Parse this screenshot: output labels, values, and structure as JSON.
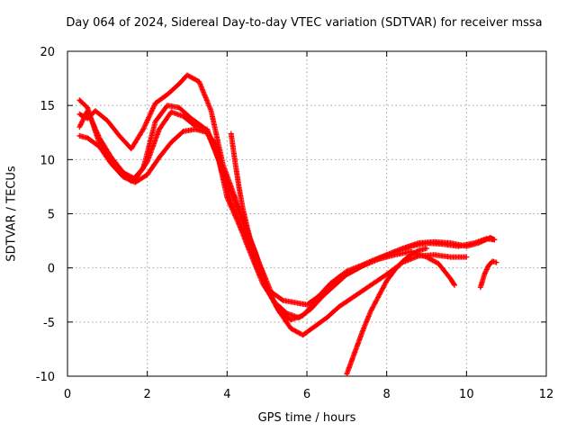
{
  "chart_data": {
    "type": "scatter",
    "title": "Day 064 of 2024, Sidereal Day-to-day VTEC variation (SDTVAR) for receiver mssa",
    "xlabel": "GPS time / hours",
    "ylabel": "SDTVAR / TECUs",
    "xlim": [
      0,
      12
    ],
    "ylim": [
      -10,
      20
    ],
    "xticks": [
      "0",
      "2",
      "4",
      "6",
      "8",
      "10",
      "12"
    ],
    "yticks": [
      "-10",
      "-5",
      "0",
      "5",
      "10",
      "15",
      "20"
    ],
    "grid": true,
    "marker": "+",
    "color": "#ff0000",
    "series": [
      {
        "name": "track-1",
        "x": [
          0.3,
          0.5,
          0.7,
          1.0,
          1.3,
          1.6,
          1.9,
          2.2,
          2.5,
          2.8,
          3.0,
          3.3,
          3.6,
          3.9,
          4.2,
          4.5,
          4.8,
          5.1,
          5.4,
          5.7,
          6.0,
          6.3,
          6.6,
          7.0,
          7.4,
          7.8,
          8.2,
          8.6,
          9.0,
          9.4,
          9.8,
          10.2,
          10.5,
          10.7
        ],
        "y": [
          14.2,
          13.8,
          14.5,
          13.6,
          12.2,
          11.0,
          12.8,
          15.2,
          16.0,
          17.0,
          17.8,
          17.2,
          14.5,
          9.5,
          6.5,
          3.5,
          0.5,
          -2.2,
          -3.0,
          -3.2,
          -3.4,
          -2.6,
          -1.4,
          -0.3,
          0.3,
          0.9,
          1.5,
          2.0,
          2.3,
          2.2,
          2.0,
          2.3,
          2.7,
          2.6
        ]
      },
      {
        "name": "track-2",
        "x": [
          0.3,
          0.5,
          0.8,
          1.1,
          1.4,
          1.7,
          2.0,
          2.3,
          2.6,
          2.9,
          3.2,
          3.5,
          3.8,
          4.1,
          4.4,
          4.7,
          5.0,
          5.3,
          5.6,
          5.9,
          6.2,
          6.5,
          6.8,
          7.2,
          7.6,
          8.0,
          8.4,
          8.8,
          9.2,
          9.6,
          10.0,
          10.3,
          10.6,
          10.7
        ],
        "y": [
          13.0,
          14.5,
          12.0,
          10.2,
          8.8,
          8.2,
          9.8,
          12.8,
          14.4,
          14.0,
          13.1,
          12.8,
          9.8,
          6.0,
          3.5,
          0.5,
          -2.0,
          -4.0,
          -4.8,
          -4.4,
          -3.2,
          -2.0,
          -1.0,
          -0.2,
          0.6,
          1.2,
          1.8,
          2.3,
          2.4,
          2.3,
          2.0,
          2.3,
          2.8,
          2.6
        ]
      },
      {
        "name": "track-3",
        "x": [
          0.3,
          0.5,
          0.8,
          1.1,
          1.4,
          1.7,
          2.0,
          2.3,
          2.6,
          2.9,
          3.2,
          3.5,
          3.8,
          4.1,
          4.4,
          4.7,
          5.0,
          5.3,
          5.6,
          5.9,
          6.2,
          6.5,
          6.8,
          7.2,
          7.6,
          8.0,
          8.4,
          8.8,
          9.2,
          9.6,
          10.0
        ],
        "y": [
          12.2,
          12.0,
          11.2,
          9.6,
          8.4,
          7.9,
          8.6,
          10.2,
          11.6,
          12.6,
          12.8,
          12.5,
          10.0,
          7.0,
          4.2,
          1.5,
          -1.8,
          -4.0,
          -5.6,
          -6.2,
          -5.4,
          -4.6,
          -3.6,
          -2.6,
          -1.6,
          -0.6,
          0.5,
          1.1,
          1.2,
          1.0,
          1.0
        ]
      },
      {
        "name": "track-4",
        "x": [
          0.3,
          0.5,
          0.8,
          1.1,
          1.4,
          1.6,
          1.9,
          2.2,
          2.5,
          2.8,
          3.1,
          3.4,
          3.7,
          4.0,
          4.3,
          4.6,
          4.9,
          5.2,
          5.5,
          5.8,
          6.1,
          6.4,
          6.7,
          7.0,
          7.4,
          7.8,
          8.2,
          8.6,
          9.0,
          9.3,
          9.6,
          9.7
        ],
        "y": [
          15.5,
          14.8,
          11.5,
          9.8,
          8.6,
          8.0,
          9.2,
          13.5,
          15.0,
          14.8,
          13.8,
          13.0,
          11.5,
          6.5,
          4.0,
          1.2,
          -1.5,
          -3.2,
          -4.2,
          -4.6,
          -3.8,
          -2.6,
          -1.6,
          -0.6,
          0.2,
          0.8,
          1.2,
          1.5,
          1.0,
          0.4,
          -1.0,
          -1.6
        ]
      },
      {
        "name": "track-5",
        "x": [
          4.1,
          4.2,
          4.3,
          4.4,
          4.5,
          4.6,
          4.7
        ],
        "y": [
          12.4,
          9.8,
          7.4,
          5.4,
          3.8,
          2.4,
          1.2
        ]
      },
      {
        "name": "track-6",
        "x": [
          7.0,
          7.2,
          7.4,
          7.6,
          7.8,
          8.0,
          8.2,
          8.4,
          8.6,
          8.8,
          9.0
        ],
        "y": [
          -9.8,
          -7.8,
          -5.8,
          -4.0,
          -2.6,
          -1.2,
          -0.2,
          0.6,
          1.2,
          1.6,
          1.8
        ]
      },
      {
        "name": "track-7",
        "x": [
          10.35,
          10.45,
          10.55,
          10.65,
          10.75
        ],
        "y": [
          -1.8,
          -0.6,
          0.2,
          0.6,
          0.5
        ]
      }
    ]
  }
}
